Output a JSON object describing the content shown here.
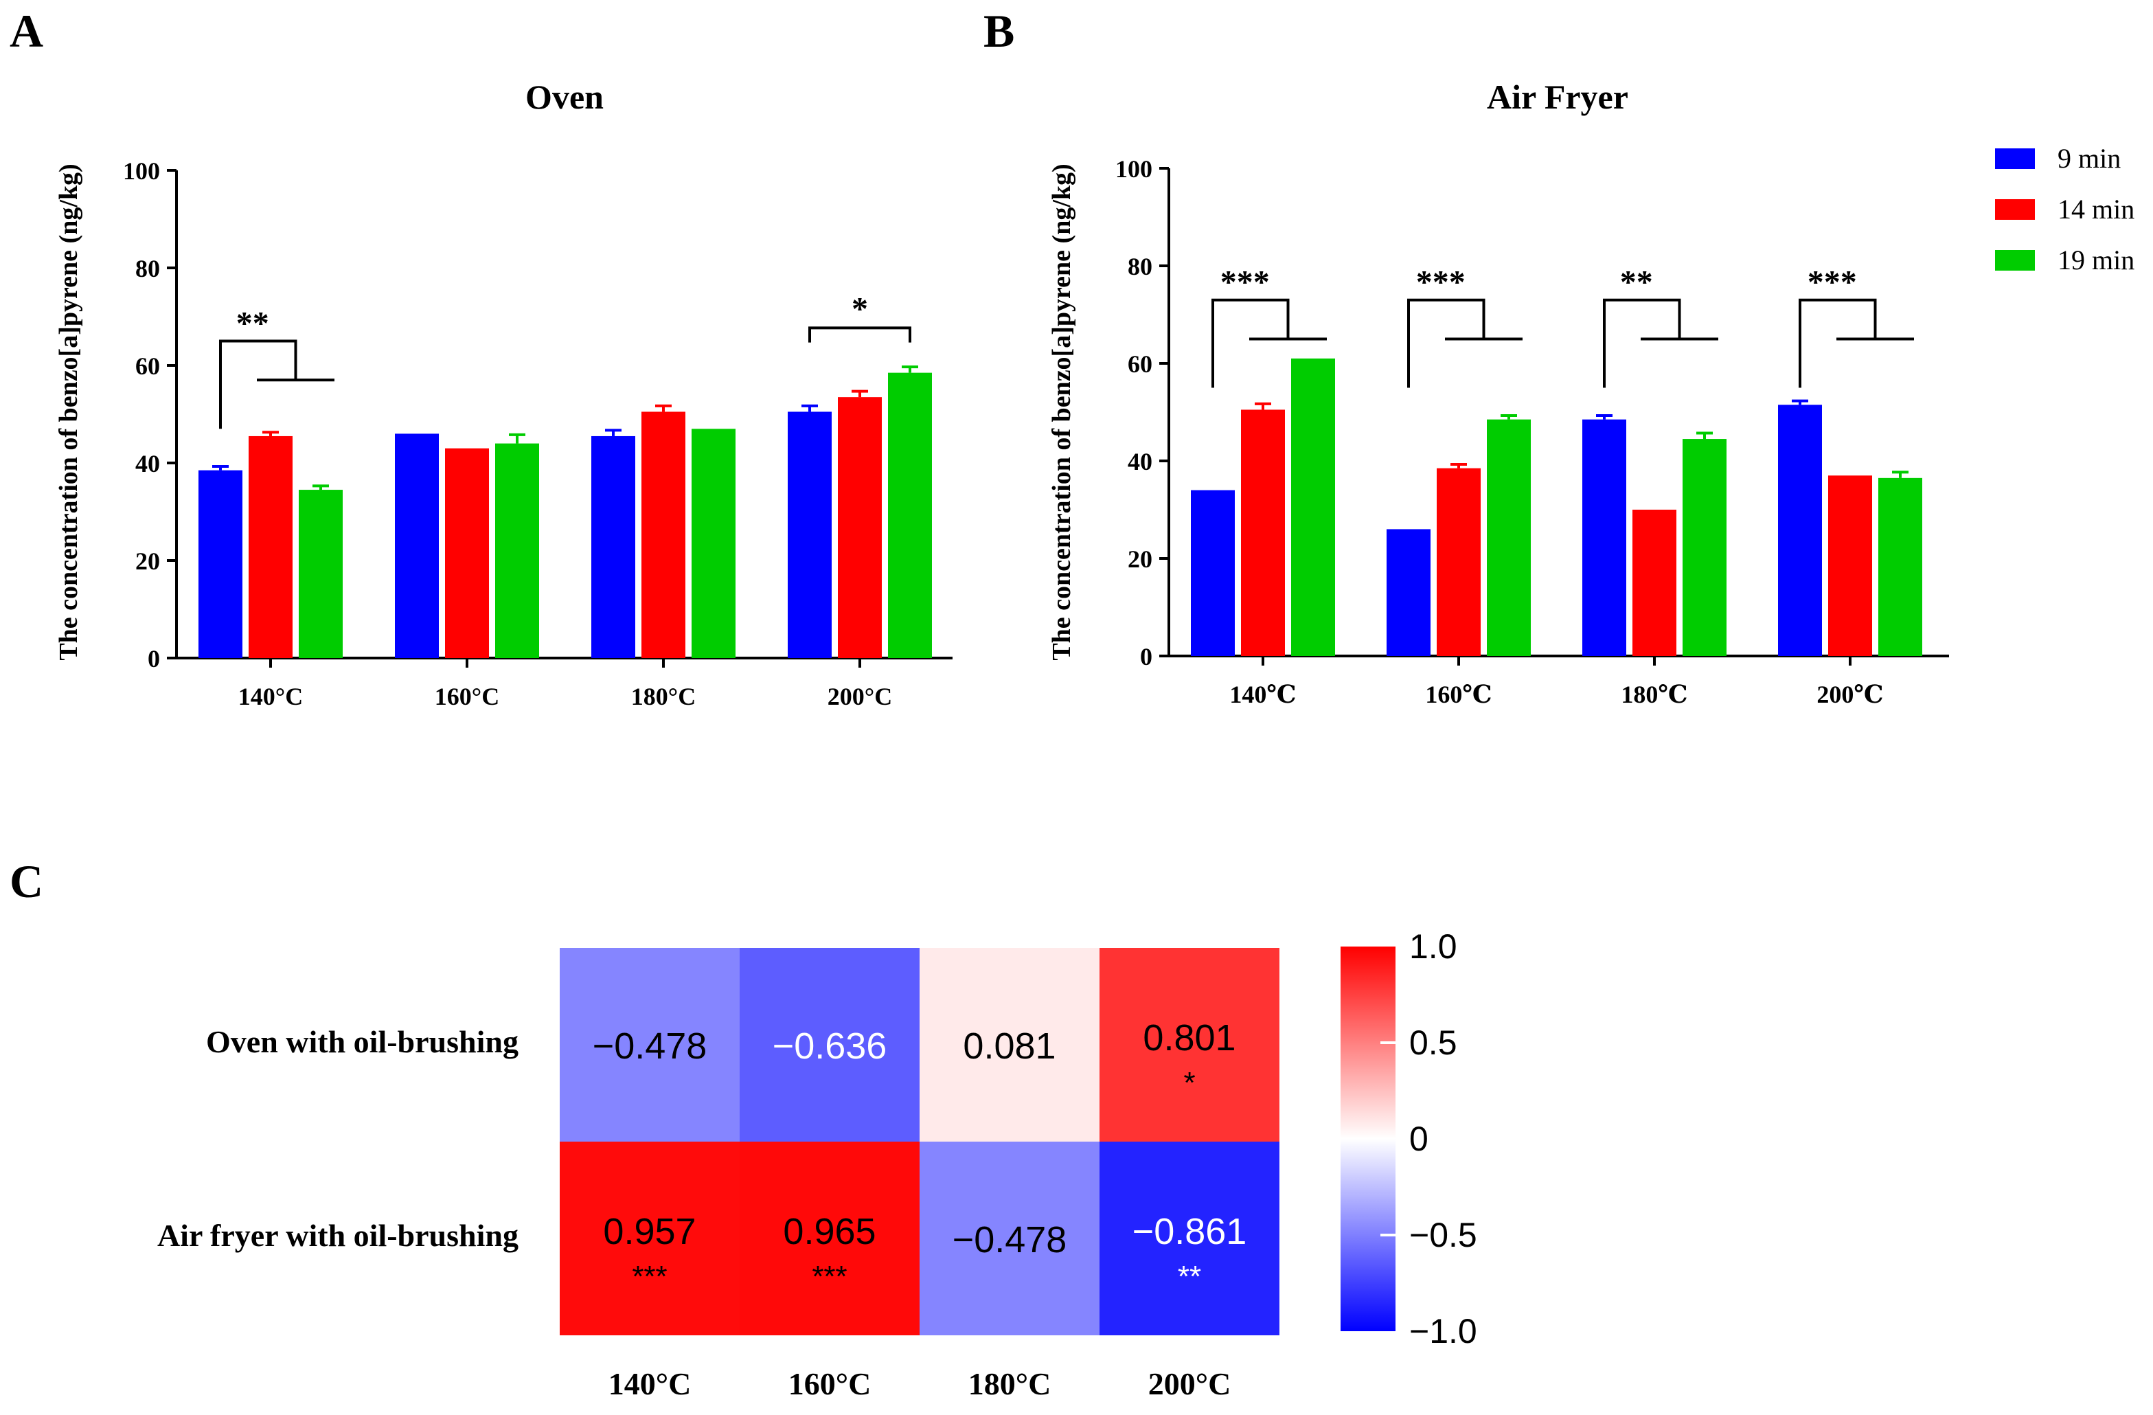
{
  "panels": [
    {
      "letter": "A"
    },
    {
      "letter": "B"
    },
    {
      "letter": "C"
    }
  ],
  "chart_data": [
    {
      "type": "bar",
      "title": "Oven",
      "xlabel": "",
      "ylabel": "The concentration of benzo[a]pyrene (ng/kg)",
      "ylim": [
        0,
        100
      ],
      "yticks": [
        0,
        20,
        40,
        60,
        80,
        100
      ],
      "categories": [
        "140°C",
        "160°C",
        "180°C",
        "200°C"
      ],
      "series": [
        {
          "name": "9 min",
          "color": "#0000ff",
          "values": [
            38.5,
            46,
            45.5,
            50.5
          ],
          "errors": [
            0.8,
            0,
            1.2,
            1.2
          ]
        },
        {
          "name": "14 min",
          "color": "#ff0000",
          "values": [
            45.5,
            43,
            50.5,
            53.5
          ],
          "errors": [
            0.8,
            0,
            1.2,
            1.2
          ]
        },
        {
          "name": "19 min",
          "color": "#00cc00",
          "values": [
            34.5,
            44,
            47,
            58.5
          ],
          "errors": [
            0.8,
            1.8,
            0,
            1.2
          ]
        }
      ],
      "grid": false,
      "legend": "none",
      "significance": [
        {
          "category": "140°C",
          "label": "**",
          "style": "split"
        },
        {
          "category": "200°C",
          "label": "*",
          "style": "simple"
        }
      ]
    },
    {
      "type": "bar",
      "title": "Air Fryer",
      "xlabel": "",
      "ylabel": "The concentration of benzo[a]pyrene (ng/kg)",
      "ylim": [
        0,
        100
      ],
      "yticks": [
        0,
        20,
        40,
        60,
        80,
        100
      ],
      "categories": [
        "140℃",
        "160℃",
        "180℃",
        "200℃"
      ],
      "series": [
        {
          "name": "9 min",
          "color": "#0000ff",
          "values": [
            34,
            26,
            48.5,
            51.5
          ],
          "errors": [
            0,
            0,
            0.8,
            0.8
          ]
        },
        {
          "name": "14 min",
          "color": "#ff0000",
          "values": [
            50.5,
            38.5,
            30,
            37
          ],
          "errors": [
            1.2,
            0.8,
            0,
            0
          ]
        },
        {
          "name": "19 min",
          "color": "#00cc00",
          "values": [
            61,
            48.5,
            44.5,
            36.5
          ],
          "errors": [
            0,
            0.8,
            1.2,
            1.2
          ]
        }
      ],
      "grid": false,
      "legend": "top-right",
      "significance": [
        {
          "category": "140℃",
          "label": "***",
          "style": "split"
        },
        {
          "category": "160℃",
          "label": "***",
          "style": "split"
        },
        {
          "category": "180℃",
          "label": "**",
          "style": "split"
        },
        {
          "category": "200℃",
          "label": "***",
          "style": "split"
        }
      ]
    },
    {
      "type": "heatmap",
      "rows": [
        "Oven with oil-brushing",
        "Air fryer with oil-brushing"
      ],
      "columns": [
        "140°C",
        "160°C",
        "180°C",
        "200°C"
      ],
      "values": [
        [
          -0.478,
          -0.636,
          0.081,
          0.801
        ],
        [
          0.957,
          0.965,
          -0.478,
          -0.861
        ]
      ],
      "value_labels": [
        [
          "−0.478",
          "−0.636",
          "0.081",
          "0.801"
        ],
        [
          "0.957",
          "0.965",
          "−0.478",
          "−0.861"
        ]
      ],
      "significance": [
        [
          "",
          "",
          "",
          "*"
        ],
        [
          "***",
          "***",
          "",
          "**"
        ]
      ],
      "colorscale": {
        "min": -1,
        "max": 1,
        "low": "#0000ff",
        "mid": "#ffffff",
        "high": "#ff0000"
      },
      "colorbar_ticks": [
        {
          "value": 1,
          "label": "1.0"
        },
        {
          "value": 0.5,
          "label": "0.5"
        },
        {
          "value": 0,
          "label": "0"
        },
        {
          "value": -0.5,
          "label": "−0.5"
        },
        {
          "value": -1,
          "label": "−1.0"
        }
      ]
    }
  ]
}
